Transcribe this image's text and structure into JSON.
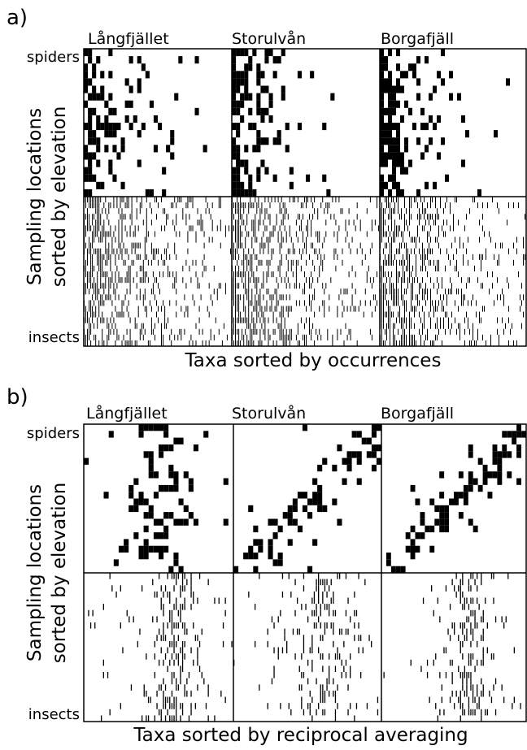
{
  "panels": [
    {
      "label": "a)",
      "titles": [
        "Långfjället",
        "Storulvån",
        "Borgafjäll"
      ],
      "y_top": "spiders",
      "y_bottom": "insects",
      "y_axis_label": [
        "Sampling locations",
        "sorted by elevation"
      ],
      "x_axis_label": "Taxa sorted by occurrences"
    },
    {
      "label": "b)",
      "titles": [
        "Långfjället",
        "Storulvån",
        "Borgafjäll"
      ],
      "y_top": "spiders",
      "y_bottom": "insects",
      "y_axis_label": [
        "Sampling locations",
        "sorted by elevation"
      ],
      "x_axis_label": "Taxa sorted by reciprocal averaging"
    }
  ]
}
